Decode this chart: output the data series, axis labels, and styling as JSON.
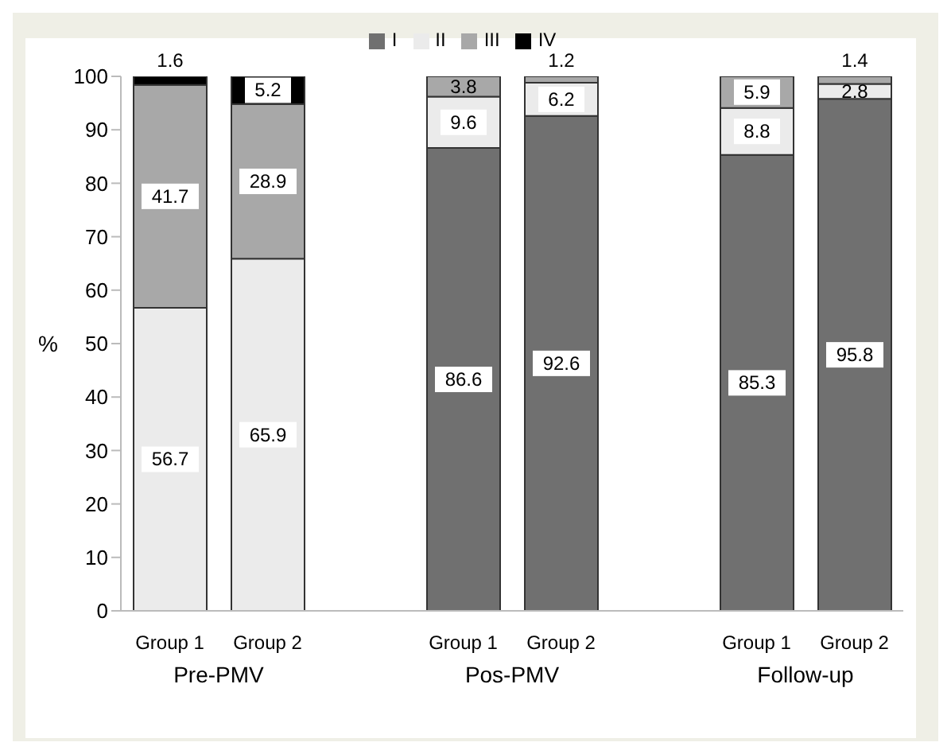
{
  "chart_data": {
    "type": "bar",
    "stacked": true,
    "ylabel": "%",
    "categories": [
      "Group 1",
      "Group 2",
      "Group 1",
      "Group 2",
      "Group 1",
      "Group 2"
    ],
    "annotations": [
      "Pre-PMV",
      "Pos-PMV",
      "Follow-up"
    ],
    "series": [
      {
        "name": "I",
        "color": "#707070",
        "values": [
          0,
          0,
          86.6,
          92.6,
          85.3,
          95.8
        ],
        "value_labels": [
          null,
          null,
          "86.6",
          "92.6",
          "85.3",
          "95.8"
        ]
      },
      {
        "name": "II",
        "color": "#ebebeb",
        "values": [
          56.7,
          65.9,
          9.6,
          6.2,
          8.8,
          2.8
        ],
        "value_labels": [
          "56.7",
          "65.9",
          "9.6",
          "6.2",
          "8.8",
          "2.8"
        ]
      },
      {
        "name": "III",
        "color": "#a8a8a8",
        "values": [
          41.7,
          28.9,
          3.8,
          1.2,
          5.9,
          1.4
        ],
        "value_labels": [
          "41.7",
          "28.9",
          "3.8",
          "1.2",
          "5.9",
          "1.4"
        ]
      },
      {
        "name": "IV",
        "color": "#000000",
        "values": [
          1.6,
          5.2,
          0,
          0,
          0,
          0
        ],
        "value_labels": [
          "1.6",
          "5.2",
          null,
          null,
          null,
          null
        ]
      }
    ],
    "ylim": [
      0,
      100
    ],
    "yticks": [
      0,
      10,
      20,
      30,
      40,
      50,
      60,
      70,
      80,
      90,
      100
    ],
    "grid": false,
    "legend": "top"
  }
}
